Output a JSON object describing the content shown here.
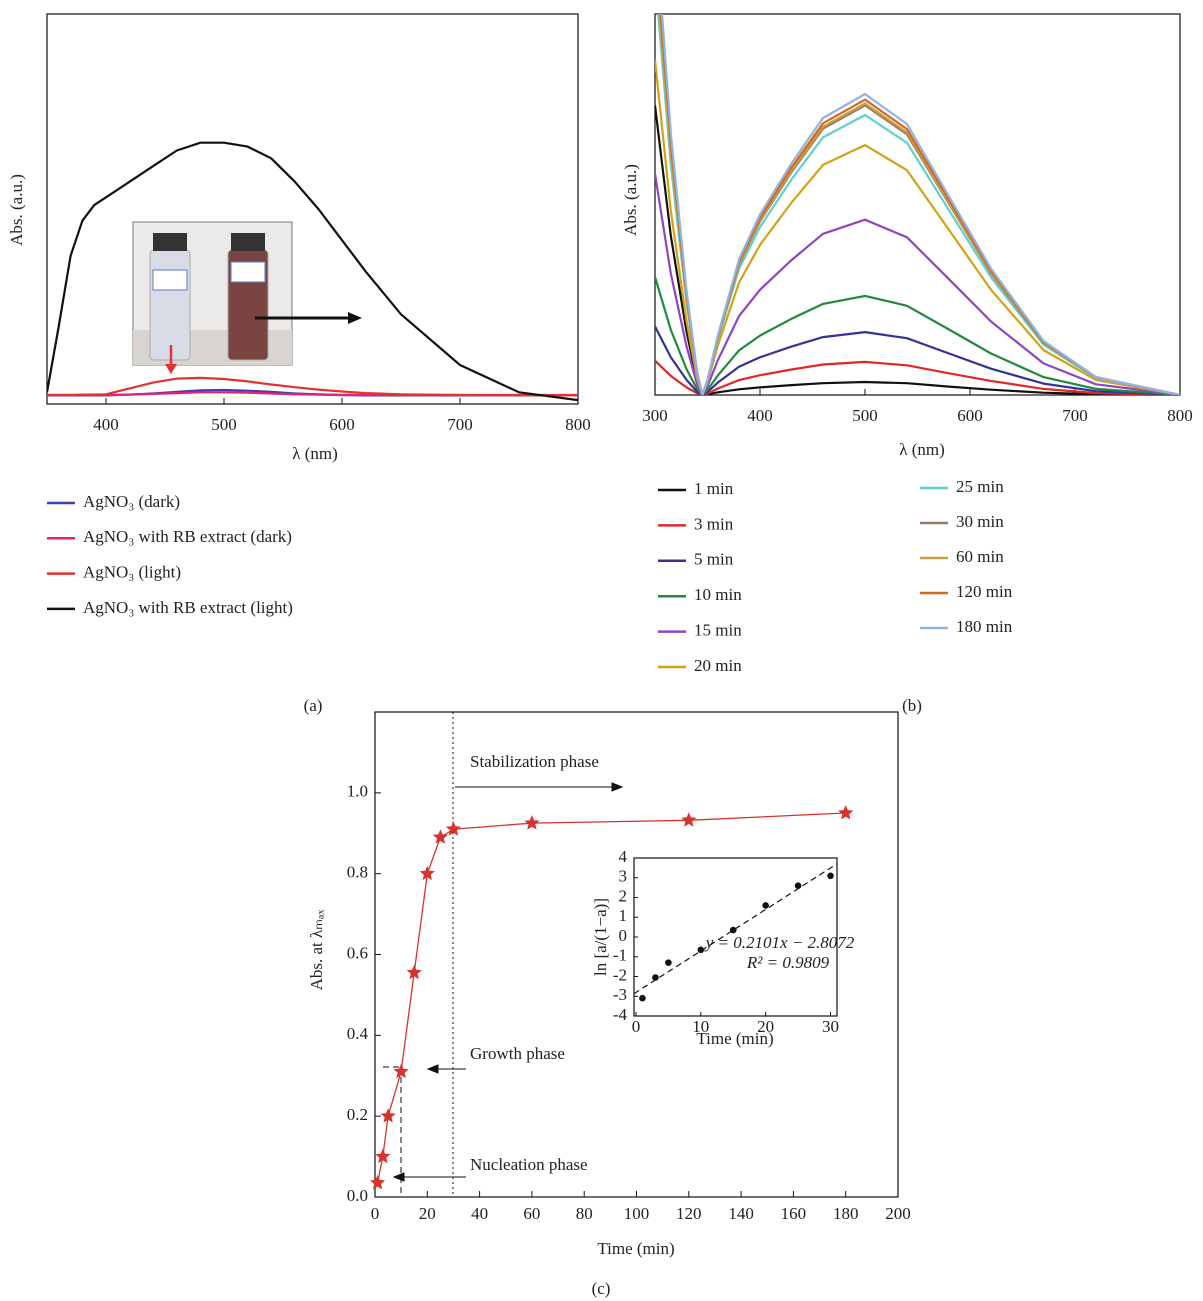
{
  "chart_data": [
    {
      "type": "line",
      "label": "(a)",
      "xlabel": "λ (nm)",
      "ylabel": "Abs. (a.u.)",
      "xlim": [
        350,
        800
      ],
      "xticks": [
        400,
        500,
        600,
        700,
        800
      ],
      "ylim": [
        0,
        1
      ],
      "yticks": [],
      "legend": "bottom",
      "x": [
        350,
        360,
        370,
        380,
        390,
        400,
        420,
        440,
        460,
        480,
        500,
        520,
        540,
        560,
        580,
        600,
        620,
        650,
        700,
        750,
        800
      ],
      "series": [
        {
          "name": "AgNO₃ (dark)",
          "color": "#3f3fae",
          "values": [
            0.022,
            0.022,
            0.022,
            0.022,
            0.022,
            0.022,
            0.024,
            0.027,
            0.031,
            0.035,
            0.036,
            0.034,
            0.031,
            0.027,
            0.025,
            0.023,
            0.022,
            0.022,
            0.022,
            0.022,
            0.022
          ]
        },
        {
          "name": "AgNO₃ with RB extract (dark)",
          "color": "#e2207c",
          "values": [
            0.023,
            0.023,
            0.023,
            0.023,
            0.023,
            0.023,
            0.024,
            0.026,
            0.028,
            0.03,
            0.03,
            0.029,
            0.027,
            0.025,
            0.024,
            0.023,
            0.023,
            0.023,
            0.023,
            0.023,
            0.023
          ]
        },
        {
          "name": "AgNO₃ (light)",
          "color": "#e23232",
          "values": [
            0.023,
            0.023,
            0.023,
            0.024,
            0.024,
            0.025,
            0.04,
            0.055,
            0.065,
            0.067,
            0.064,
            0.058,
            0.05,
            0.043,
            0.037,
            0.032,
            0.028,
            0.025,
            0.023,
            0.022,
            0.022
          ]
        },
        {
          "name": "AgNO₃ with RB extract (light)",
          "color": "#111111",
          "values": [
            0.03,
            0.2,
            0.38,
            0.47,
            0.51,
            0.53,
            0.57,
            0.61,
            0.65,
            0.67,
            0.67,
            0.66,
            0.63,
            0.57,
            0.5,
            0.42,
            0.34,
            0.23,
            0.1,
            0.03,
            0.01
          ]
        }
      ]
    },
    {
      "type": "line",
      "label": "(b)",
      "xlabel": "λ (nm)",
      "ylabel": "Abs. (a.u.)",
      "xlim": [
        300,
        800
      ],
      "xticks": [
        300,
        400,
        500,
        600,
        700,
        800
      ],
      "ylim": [
        0,
        1
      ],
      "yticks": [],
      "legend": "bottom",
      "x": [
        300,
        315,
        330,
        340,
        345,
        350,
        360,
        380,
        400,
        430,
        460,
        500,
        540,
        580,
        620,
        670,
        720,
        800
      ],
      "series": [
        {
          "name": "1 min",
          "color": "#111111",
          "values": [
            0.76,
            0.418,
            0.167,
            0.038,
            0,
            0.002,
            0.007,
            0.015,
            0.02,
            0.026,
            0.031,
            0.034,
            0.031,
            0.022,
            0.014,
            0.006,
            0.002,
            0
          ]
        },
        {
          "name": "3 min",
          "color": "#e02828",
          "values": [
            0.09,
            0.05,
            0.02,
            0.005,
            0,
            0.004,
            0.017,
            0.039,
            0.052,
            0.067,
            0.08,
            0.087,
            0.078,
            0.057,
            0.037,
            0.016,
            0.005,
            0
          ]
        },
        {
          "name": "5 min",
          "color": "#33339a",
          "values": [
            0.18,
            0.099,
            0.04,
            0.009,
            0,
            0.008,
            0.033,
            0.074,
            0.099,
            0.127,
            0.152,
            0.165,
            0.149,
            0.109,
            0.069,
            0.03,
            0.01,
            0
          ]
        },
        {
          "name": "10 min",
          "color": "#1f8a3a",
          "values": [
            0.31,
            0.171,
            0.068,
            0.016,
            0,
            0.013,
            0.052,
            0.117,
            0.156,
            0.2,
            0.239,
            0.26,
            0.234,
            0.172,
            0.109,
            0.047,
            0.016,
            0
          ]
        },
        {
          "name": "15 min",
          "color": "#8e44c4",
          "values": [
            0.58,
            0.319,
            0.128,
            0.029,
            0,
            0.023,
            0.092,
            0.207,
            0.276,
            0.354,
            0.423,
            0.46,
            0.414,
            0.304,
            0.193,
            0.083,
            0.028,
            0
          ]
        },
        {
          "name": "20 min",
          "color": "#d4a014",
          "values": [
            0.88,
            0.484,
            0.194,
            0.044,
            0,
            0.033,
            0.131,
            0.295,
            0.394,
            0.505,
            0.604,
            0.656,
            0.59,
            0.433,
            0.276,
            0.118,
            0.039,
            0
          ]
        },
        {
          "name": "25 min",
          "color": "#5fcfcf",
          "values": [
            1.1,
            0.605,
            0.242,
            0.055,
            0,
            0.037,
            0.147,
            0.331,
            0.441,
            0.566,
            0.676,
            0.735,
            0.662,
            0.485,
            0.309,
            0.132,
            0.044,
            0
          ]
        },
        {
          "name": "30 min",
          "color": "#9a7868",
          "values": [
            1.2,
            0.66,
            0.264,
            0.06,
            0,
            0.038,
            0.152,
            0.342,
            0.456,
            0.585,
            0.699,
            0.76,
            0.684,
            0.502,
            0.319,
            0.137,
            0.046,
            0
          ]
        },
        {
          "name": "60 min",
          "color": "#c2a040",
          "values": [
            1.15,
            0.633,
            0.253,
            0.058,
            0,
            0.038,
            0.153,
            0.344,
            0.459,
            0.589,
            0.704,
            0.765,
            0.689,
            0.505,
            0.321,
            0.138,
            0.046,
            0
          ]
        },
        {
          "name": "120 min",
          "color": "#d9661c",
          "values": [
            1.2,
            0.66,
            0.264,
            0.06,
            0,
            0.039,
            0.155,
            0.349,
            0.465,
            0.597,
            0.713,
            0.775,
            0.698,
            0.512,
            0.326,
            0.14,
            0.047,
            0
          ]
        },
        {
          "name": "180 min",
          "color": "#8fb3e6",
          "values": [
            1.25,
            0.688,
            0.275,
            0.063,
            0,
            0.04,
            0.158,
            0.356,
            0.474,
            0.608,
            0.727,
            0.79,
            0.711,
            0.521,
            0.332,
            0.142,
            0.047,
            0
          ]
        }
      ]
    },
    {
      "type": "scatter",
      "label": "(c)",
      "xlabel": "Time (min)",
      "ylabel": "Abs. at λₘₐₓ",
      "color": "#d8322c",
      "xlim": [
        0,
        200
      ],
      "xticks": [
        0,
        20,
        40,
        60,
        80,
        100,
        120,
        140,
        160,
        180,
        200
      ],
      "ylim": [
        0,
        1.2
      ],
      "yticks": [
        {
          "value": 0,
          "label": "0.0"
        },
        0.2,
        0.4,
        0.6,
        0.8,
        {
          "value": 1,
          "label": "1.0"
        }
      ],
      "x": [
        1,
        3,
        5,
        10,
        15,
        20,
        25,
        30,
        60,
        120,
        180
      ],
      "values": [
        0.035,
        0.1,
        0.2,
        0.31,
        0.555,
        0.8,
        0.89,
        0.91,
        0.925,
        0.932,
        0.95
      ],
      "annotations": [
        "Stabilization phase",
        "Growth phase",
        "Nucleation phase"
      ]
    },
    {
      "type": "scatter",
      "xlabel": "Time (min)",
      "ylabel": "ln [a/(1−a)]",
      "color": "#111111",
      "xlim": [
        -0.3,
        31
      ],
      "xticks": [
        0,
        10,
        20,
        30
      ],
      "ylim": [
        -4,
        4
      ],
      "yticks": [
        -4,
        -3,
        -2,
        -1,
        0,
        1,
        2,
        3,
        4
      ],
      "x": [
        1,
        3,
        5,
        10,
        15,
        20,
        25,
        30
      ],
      "values": [
        -3.1,
        -2.05,
        -1.3,
        -0.65,
        0.35,
        1.6,
        2.6,
        3.1
      ],
      "fit": {
        "slope": 0.2101,
        "intercept": -2.8072,
        "equation": "y = 0.2101x − 2.8072",
        "r2": "R² = 0.9809"
      }
    }
  ]
}
